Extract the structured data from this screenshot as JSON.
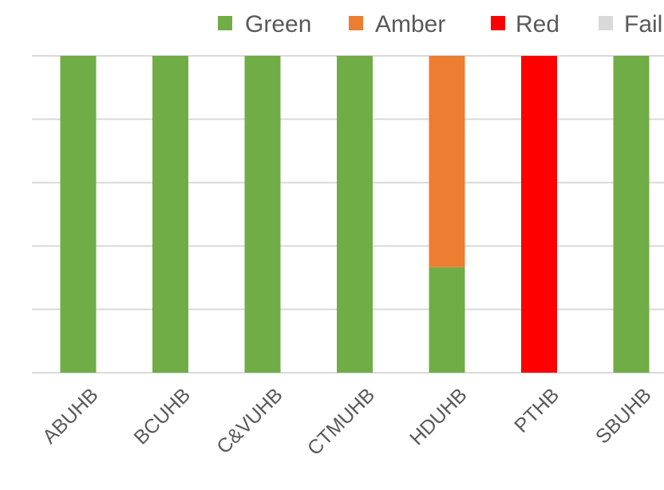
{
  "chart_data": {
    "type": "bar",
    "stacked": true,
    "percent_stacked": true,
    "categories": [
      "ABUHB",
      "BCUHB",
      "C&VUHB",
      "CTMUHB",
      "HDUHB",
      "PTHB",
      "SBUHB"
    ],
    "series": [
      {
        "name": "Green",
        "color": "#70AD47",
        "values": [
          100,
          100,
          100,
          100,
          33.3,
          0,
          100
        ]
      },
      {
        "name": "Amber",
        "color": "#ED7D31",
        "values": [
          0,
          0,
          0,
          0,
          66.7,
          0,
          0
        ]
      },
      {
        "name": "Red",
        "color": "#FF0000",
        "values": [
          0,
          0,
          0,
          0,
          0,
          100,
          0
        ]
      },
      {
        "name": "Fail",
        "color": "#D9D9D9",
        "values": [
          0,
          0,
          0,
          0,
          0,
          0,
          0
        ]
      }
    ],
    "ylim": [
      0,
      100
    ],
    "y_gridlines": [
      0,
      20,
      40,
      60,
      80,
      100
    ],
    "y_tick_labels_visible": false,
    "grid": true,
    "legend": "top-right",
    "title": "",
    "xlabel": "",
    "ylabel": ""
  }
}
